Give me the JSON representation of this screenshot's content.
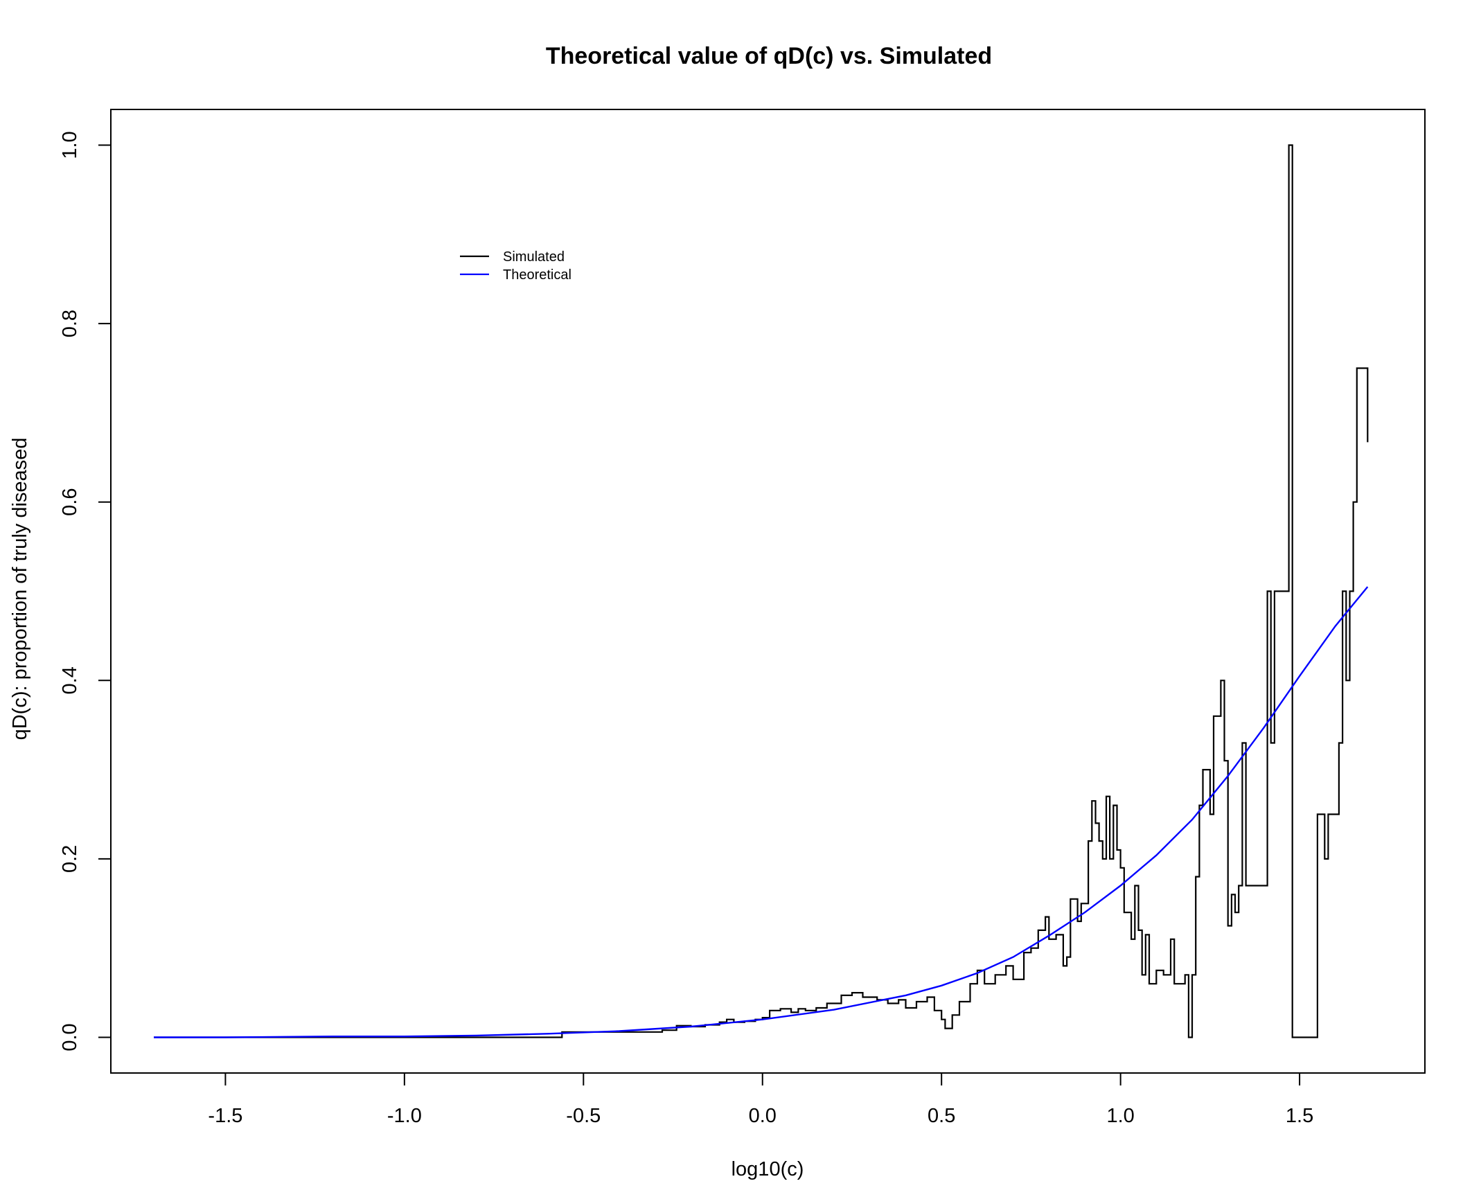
{
  "chart_data": {
    "type": "line",
    "title": "Theoretical value of qD(c) vs. Simulated",
    "xlabel": "log10(c)",
    "ylabel": "qD(c): proportion of truly diseased",
    "xlim": [
      -1.82,
      1.85
    ],
    "ylim": [
      -0.04,
      1.04
    ],
    "x_ticks": [
      -1.5,
      -1.0,
      -0.5,
      0.0,
      0.5,
      1.0,
      1.5
    ],
    "x_tick_labels": [
      "-1.5",
      "-1.0",
      "-0.5",
      "0.0",
      "0.5",
      "1.0",
      "1.5"
    ],
    "y_ticks": [
      0.0,
      0.2,
      0.4,
      0.6,
      0.8,
      1.0
    ],
    "y_tick_labels": [
      "0.0",
      "0.2",
      "0.4",
      "0.6",
      "0.8",
      "1.0"
    ],
    "grid": false,
    "legend_position": "top-left",
    "series": [
      {
        "name": "Simulated",
        "color": "#000000",
        "points": [
          [
            -1.7,
            0.0
          ],
          [
            -0.57,
            0.0
          ],
          [
            -0.56,
            0.006
          ],
          [
            -0.32,
            0.006
          ],
          [
            -0.28,
            0.008
          ],
          [
            -0.24,
            0.013
          ],
          [
            -0.2,
            0.012
          ],
          [
            -0.16,
            0.014
          ],
          [
            -0.12,
            0.017
          ],
          [
            -0.1,
            0.02
          ],
          [
            -0.08,
            0.017
          ],
          [
            -0.05,
            0.018
          ],
          [
            -0.02,
            0.02
          ],
          [
            0.0,
            0.022
          ],
          [
            0.02,
            0.03
          ],
          [
            0.05,
            0.032
          ],
          [
            0.08,
            0.028
          ],
          [
            0.1,
            0.032
          ],
          [
            0.12,
            0.03
          ],
          [
            0.15,
            0.033
          ],
          [
            0.18,
            0.038
          ],
          [
            0.22,
            0.047
          ],
          [
            0.25,
            0.05
          ],
          [
            0.28,
            0.045
          ],
          [
            0.32,
            0.042
          ],
          [
            0.35,
            0.038
          ],
          [
            0.38,
            0.042
          ],
          [
            0.4,
            0.033
          ],
          [
            0.43,
            0.04
          ],
          [
            0.46,
            0.045
          ],
          [
            0.48,
            0.03
          ],
          [
            0.5,
            0.02
          ],
          [
            0.51,
            0.01
          ],
          [
            0.53,
            0.025
          ],
          [
            0.55,
            0.04
          ],
          [
            0.58,
            0.06
          ],
          [
            0.6,
            0.075
          ],
          [
            0.62,
            0.06
          ],
          [
            0.65,
            0.07
          ],
          [
            0.68,
            0.08
          ],
          [
            0.7,
            0.065
          ],
          [
            0.73,
            0.095
          ],
          [
            0.75,
            0.1
          ],
          [
            0.77,
            0.12
          ],
          [
            0.79,
            0.135
          ],
          [
            0.8,
            0.11
          ],
          [
            0.82,
            0.115
          ],
          [
            0.84,
            0.08
          ],
          [
            0.85,
            0.09
          ],
          [
            0.86,
            0.155
          ],
          [
            0.88,
            0.13
          ],
          [
            0.89,
            0.15
          ],
          [
            0.91,
            0.22
          ],
          [
            0.92,
            0.265
          ],
          [
            0.93,
            0.24
          ],
          [
            0.94,
            0.22
          ],
          [
            0.95,
            0.2
          ],
          [
            0.96,
            0.27
          ],
          [
            0.97,
            0.2
          ],
          [
            0.98,
            0.26
          ],
          [
            0.99,
            0.21
          ],
          [
            1.0,
            0.19
          ],
          [
            1.01,
            0.14
          ],
          [
            1.03,
            0.11
          ],
          [
            1.04,
            0.17
          ],
          [
            1.05,
            0.12
          ],
          [
            1.06,
            0.07
          ],
          [
            1.07,
            0.115
          ],
          [
            1.08,
            0.06
          ],
          [
            1.1,
            0.075
          ],
          [
            1.12,
            0.07
          ],
          [
            1.14,
            0.11
          ],
          [
            1.15,
            0.06
          ],
          [
            1.17,
            0.06
          ],
          [
            1.18,
            0.07
          ],
          [
            1.19,
            0.0
          ],
          [
            1.2,
            0.07
          ],
          [
            1.21,
            0.18
          ],
          [
            1.22,
            0.26
          ],
          [
            1.23,
            0.3
          ],
          [
            1.25,
            0.25
          ],
          [
            1.26,
            0.36
          ],
          [
            1.27,
            0.36
          ],
          [
            1.28,
            0.4
          ],
          [
            1.29,
            0.31
          ],
          [
            1.3,
            0.125
          ],
          [
            1.31,
            0.16
          ],
          [
            1.32,
            0.14
          ],
          [
            1.33,
            0.17
          ],
          [
            1.34,
            0.33
          ],
          [
            1.35,
            0.17
          ],
          [
            1.39,
            0.17
          ],
          [
            1.4,
            0.17
          ],
          [
            1.41,
            0.5
          ],
          [
            1.42,
            0.33
          ],
          [
            1.43,
            0.5
          ],
          [
            1.46,
            0.5
          ],
          [
            1.47,
            1.0
          ],
          [
            1.48,
            0.0
          ],
          [
            1.53,
            0.0
          ],
          [
            1.54,
            0.0
          ],
          [
            1.55,
            0.25
          ],
          [
            1.57,
            0.2
          ],
          [
            1.58,
            0.25
          ],
          [
            1.6,
            0.25
          ],
          [
            1.61,
            0.33
          ],
          [
            1.62,
            0.5
          ],
          [
            1.63,
            0.4
          ],
          [
            1.64,
            0.5
          ],
          [
            1.65,
            0.6
          ],
          [
            1.66,
            0.75
          ],
          [
            1.69,
            0.75
          ],
          [
            1.69,
            0.667
          ]
        ]
      },
      {
        "name": "Theoretical",
        "color": "#0000ff",
        "points": [
          [
            -1.7,
            0.0
          ],
          [
            -1.5,
            0.0
          ],
          [
            -1.2,
            0.001
          ],
          [
            -1.0,
            0.001
          ],
          [
            -0.8,
            0.002
          ],
          [
            -0.6,
            0.004
          ],
          [
            -0.4,
            0.007
          ],
          [
            -0.2,
            0.012
          ],
          [
            0.0,
            0.02
          ],
          [
            0.2,
            0.031
          ],
          [
            0.4,
            0.047
          ],
          [
            0.5,
            0.058
          ],
          [
            0.6,
            0.072
          ],
          [
            0.7,
            0.09
          ],
          [
            0.8,
            0.114
          ],
          [
            0.9,
            0.14
          ],
          [
            1.0,
            0.17
          ],
          [
            1.1,
            0.204
          ],
          [
            1.2,
            0.244
          ],
          [
            1.3,
            0.293
          ],
          [
            1.4,
            0.347
          ],
          [
            1.5,
            0.405
          ],
          [
            1.6,
            0.461
          ],
          [
            1.69,
            0.505
          ]
        ]
      }
    ]
  }
}
